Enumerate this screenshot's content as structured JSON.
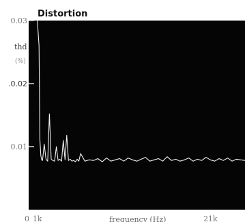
{
  "chart_data": {
    "type": "line",
    "title": "Distortion",
    "ylabel": "thd",
    "yunit": "(%)",
    "xlabel": "frequency (Hz)",
    "xlim": [
      0,
      25
    ],
    "ylim": [
      0,
      0.03
    ],
    "grid": false,
    "y_ticks": [
      {
        "value": 0.03,
        "label": "0.03"
      },
      {
        "value": 0.02,
        "label": ".0.02"
      },
      {
        "value": 0.01,
        "label": "0.01"
      }
    ],
    "x_ticks": [
      {
        "value": 0,
        "label": "0"
      },
      {
        "value": 1,
        "label": "1k"
      },
      {
        "value": 21,
        "label": "21k"
      }
    ],
    "series": [
      {
        "color": "#f0f0f0",
        "x": [
          1.0,
          1.2,
          1.3,
          1.4,
          1.5,
          1.6,
          1.8,
          2.0,
          2.2,
          2.4,
          2.6,
          2.8,
          3.0,
          3.2,
          3.4,
          3.6,
          3.8,
          4.0,
          4.2,
          4.4,
          4.6,
          4.8,
          5.0,
          5.2,
          5.4,
          5.6,
          5.8,
          6.0,
          6.5,
          7.0,
          7.5,
          8.0,
          8.5,
          9.0,
          9.5,
          10.0,
          10.5,
          11.0,
          11.5,
          12.0,
          12.5,
          13.0,
          13.5,
          14.0,
          14.5,
          15.0,
          15.5,
          16.0,
          16.5,
          17.0,
          17.5,
          18.0,
          18.5,
          19.0,
          19.5,
          20.0,
          20.5,
          21.0,
          21.5,
          22.0,
          22.5,
          23.0,
          23.5,
          24.0,
          24.5,
          25.0
        ],
        "y": [
          0.03,
          0.026,
          0.011,
          0.0086,
          0.0079,
          0.0078,
          0.0104,
          0.008,
          0.0077,
          0.0152,
          0.008,
          0.0078,
          0.0077,
          0.01,
          0.0078,
          0.008,
          0.0077,
          0.011,
          0.0079,
          0.0118,
          0.0078,
          0.008,
          0.0077,
          0.0078,
          0.0076,
          0.008,
          0.0077,
          0.0089,
          0.0077,
          0.0079,
          0.0078,
          0.0081,
          0.0076,
          0.0082,
          0.0077,
          0.0079,
          0.0081,
          0.0077,
          0.0082,
          0.0079,
          0.0077,
          0.008,
          0.0083,
          0.0077,
          0.0079,
          0.0081,
          0.0077,
          0.0084,
          0.0078,
          0.008,
          0.0077,
          0.0079,
          0.0082,
          0.0077,
          0.008,
          0.0078,
          0.0083,
          0.0079,
          0.0077,
          0.0081,
          0.0078,
          0.0082,
          0.0077,
          0.008,
          0.0079,
          0.0078
        ]
      }
    ]
  }
}
